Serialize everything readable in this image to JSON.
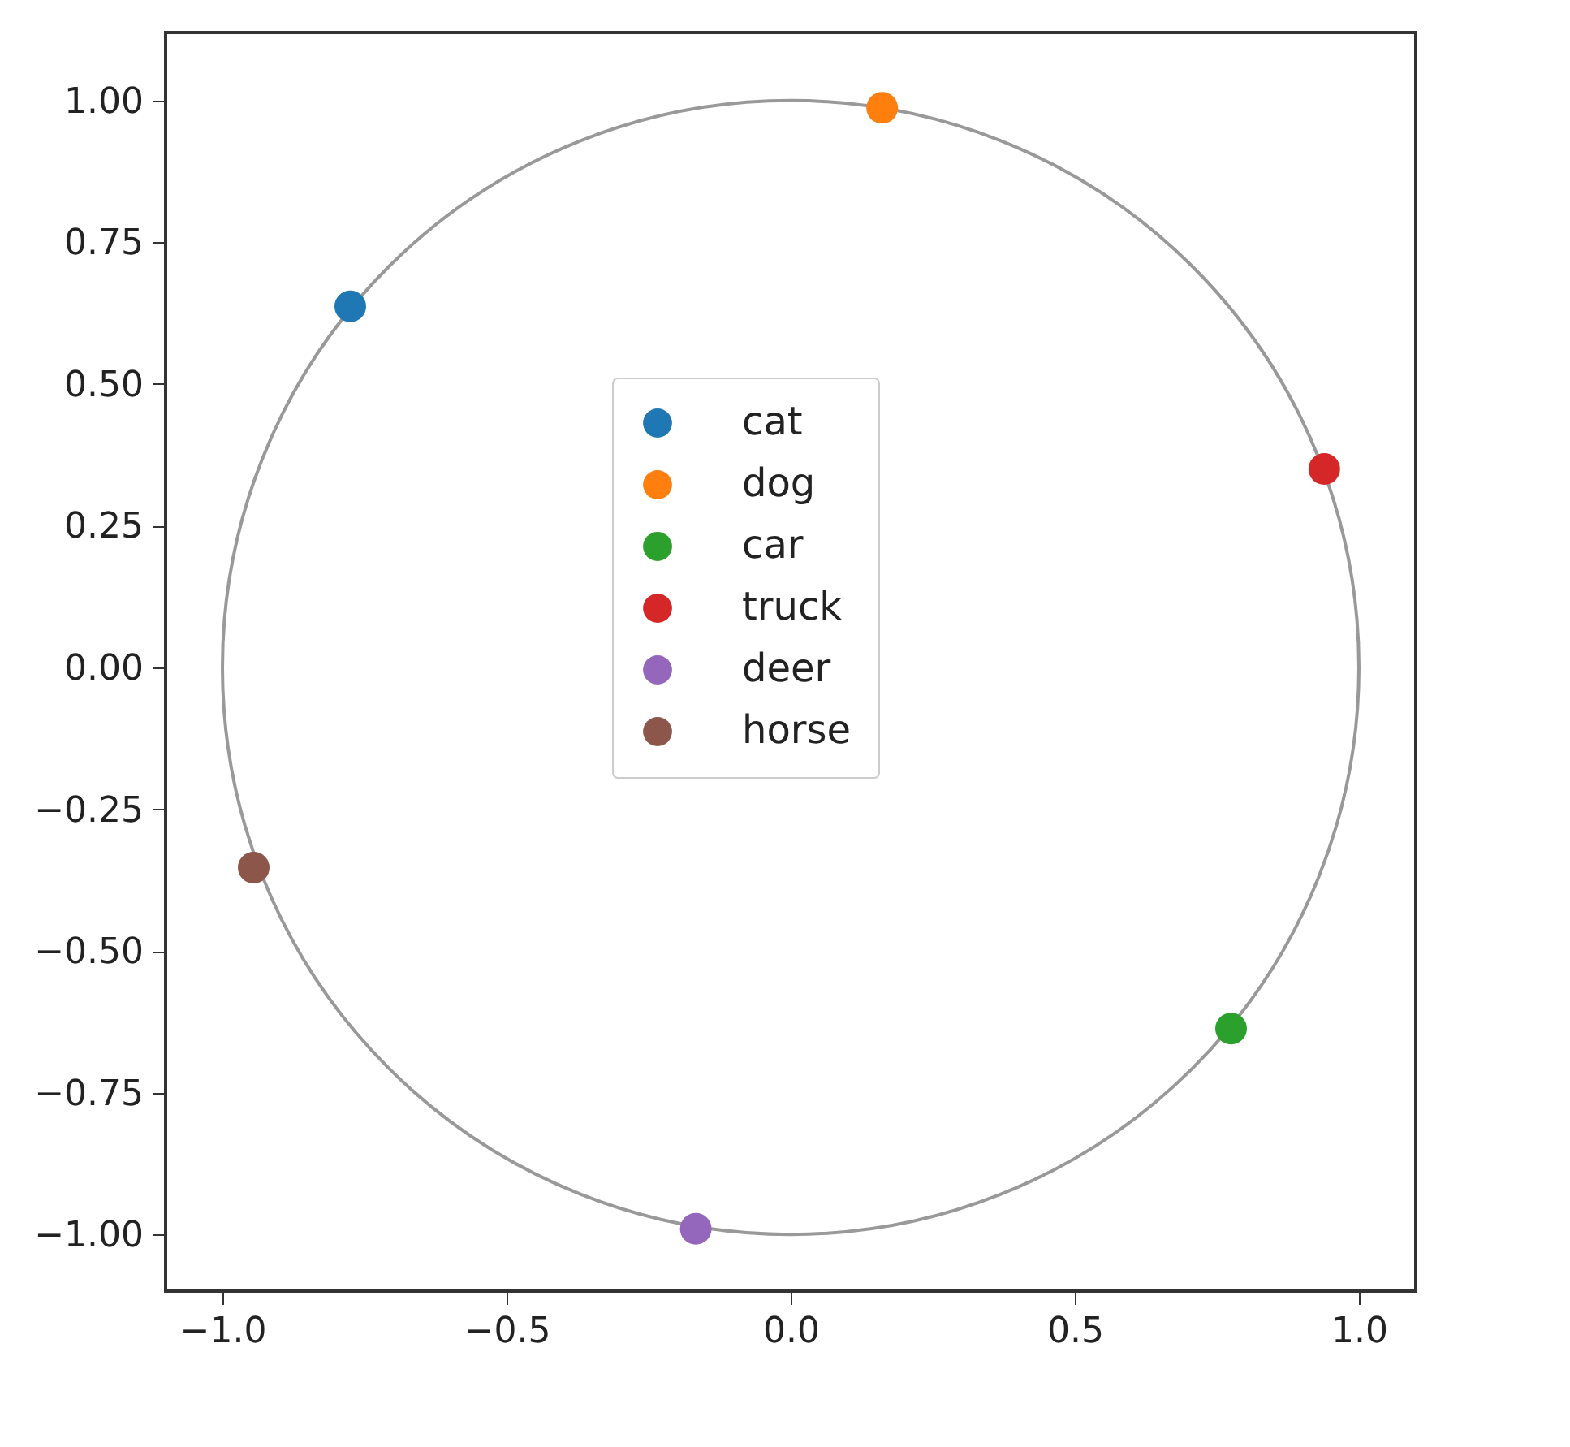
{
  "chart_data": {
    "type": "scatter",
    "xlim": [
      -1.1,
      1.1
    ],
    "ylim": [
      -1.1,
      1.12
    ],
    "xticks": [
      {
        "value": -1,
        "label": "−1.0"
      },
      {
        "value": -0.5,
        "label": "−0.5"
      },
      {
        "value": 0,
        "label": "0.0"
      },
      {
        "value": 0.5,
        "label": "0.5"
      },
      {
        "value": 1,
        "label": "1.0"
      }
    ],
    "yticks": [
      {
        "value": -1,
        "label": "−1.00"
      },
      {
        "value": -0.75,
        "label": "−0.75"
      },
      {
        "value": -0.5,
        "label": "−0.50"
      },
      {
        "value": -0.25,
        "label": "−0.25"
      },
      {
        "value": 0,
        "label": "0.00"
      },
      {
        "value": 0.25,
        "label": "0.25"
      },
      {
        "value": 0.5,
        "label": "0.50"
      },
      {
        "value": 0.75,
        "label": "0.75"
      },
      {
        "value": 1,
        "label": "1.00"
      }
    ],
    "grid": false,
    "legend": "center",
    "marker": "circle",
    "series": [
      {
        "name": "cat",
        "color": "#1f77b4",
        "x": [
          -0.775
        ],
        "values": [
          0.637
        ]
      },
      {
        "name": "dog",
        "color": "#ff7f0e",
        "x": [
          0.161
        ],
        "values": [
          0.987
        ]
      },
      {
        "name": "car",
        "color": "#2ca02c",
        "x": [
          0.775
        ],
        "values": [
          -0.637
        ]
      },
      {
        "name": "truck",
        "color": "#d62728",
        "x": [
          0.939
        ],
        "values": [
          0.35
        ]
      },
      {
        "name": "deer",
        "color": "#9467bd",
        "x": [
          -0.167
        ],
        "values": [
          -0.99
        ]
      },
      {
        "name": "horse",
        "color": "#8c564b",
        "x": [
          -0.945
        ],
        "values": [
          -0.353
        ]
      }
    ]
  }
}
